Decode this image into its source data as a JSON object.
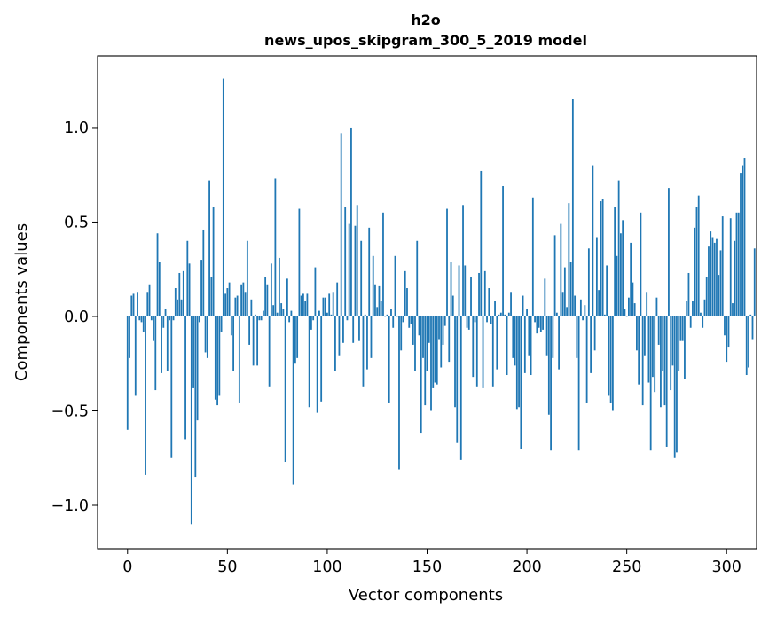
{
  "chart_data": {
    "type": "bar",
    "title": "h2o",
    "subtitle": "news_upos_skipgram_300_5_2019 model",
    "xlabel": "Vector components",
    "ylabel": "Components values",
    "xlim": [
      -15,
      315
    ],
    "ylim": [
      -1.23,
      1.38
    ],
    "xticks": [
      0,
      50,
      100,
      150,
      200,
      250,
      300
    ],
    "xtick_labels": [
      "0",
      "50",
      "100",
      "150",
      "200",
      "250",
      "300"
    ],
    "yticks": [
      -1.0,
      -0.5,
      0.0,
      0.5,
      1.0
    ],
    "ytick_labels": [
      "−1.0",
      "−0.5",
      "0.0",
      "0.5",
      "1.0"
    ],
    "bar_color": "#1f77b4",
    "grid": false,
    "legend": "none",
    "x_start": 0,
    "values": [
      -0.6,
      -0.22,
      0.11,
      0.12,
      -0.42,
      0.13,
      -0.02,
      -0.03,
      -0.08,
      -0.84,
      0.13,
      0.17,
      -0.02,
      -0.13,
      -0.39,
      0.44,
      0.29,
      -0.3,
      -0.06,
      0.04,
      -0.29,
      -0.02,
      -0.75,
      -0.02,
      0.15,
      0.09,
      0.23,
      0.09,
      0.24,
      -0.65,
      0.4,
      0.28,
      -1.1,
      -0.38,
      -0.85,
      -0.55,
      -0.03,
      0.3,
      0.46,
      -0.19,
      -0.22,
      0.72,
      0.21,
      0.58,
      -0.44,
      -0.47,
      -0.42,
      -0.08,
      1.26,
      0.12,
      0.15,
      0.18,
      -0.1,
      -0.29,
      0.1,
      0.11,
      -0.46,
      0.17,
      0.18,
      0.13,
      0.4,
      -0.15,
      0.09,
      -0.26,
      0.01,
      -0.26,
      -0.02,
      -0.02,
      0.03,
      0.21,
      0.17,
      -0.37,
      0.28,
      0.06,
      0.73,
      0.02,
      0.31,
      0.07,
      0.04,
      -0.77,
      0.2,
      -0.03,
      0.03,
      -0.89,
      -0.25,
      -0.22,
      0.57,
      0.11,
      0.12,
      0.08,
      0.12,
      -0.48,
      -0.07,
      -0.02,
      0.26,
      -0.51,
      0.03,
      -0.45,
      0.1,
      0.1,
      0.02,
      0.12,
      0.01,
      0.13,
      -0.29,
      0.18,
      -0.21,
      0.97,
      -0.14,
      0.58,
      -0.02,
      0.49,
      1.0,
      -0.14,
      0.48,
      0.59,
      -0.13,
      0.4,
      -0.37,
      0.01,
      -0.28,
      0.47,
      -0.22,
      0.32,
      0.17,
      0.05,
      0.16,
      0.08,
      0.55,
      0.0,
      0.01,
      -0.46,
      0.04,
      -0.06,
      0.32,
      0.0,
      -0.81,
      -0.18,
      -0.03,
      0.24,
      0.15,
      -0.06,
      -0.04,
      -0.15,
      -0.29,
      0.4,
      -0.1,
      -0.62,
      -0.22,
      -0.47,
      -0.29,
      -0.14,
      -0.5,
      -0.38,
      -0.35,
      -0.36,
      -0.12,
      -0.27,
      -0.15,
      -0.05,
      0.57,
      -0.24,
      0.29,
      0.11,
      -0.48,
      -0.67,
      0.27,
      -0.76,
      0.59,
      0.27,
      -0.06,
      -0.07,
      0.21,
      -0.32,
      -0.03,
      -0.37,
      0.23,
      0.77,
      -0.38,
      0.24,
      -0.03,
      0.15,
      -0.04,
      -0.37,
      0.08,
      -0.28,
      0.01,
      0.02,
      0.69,
      0.01,
      -0.31,
      0.02,
      0.13,
      -0.22,
      -0.26,
      -0.49,
      -0.48,
      -0.7,
      0.11,
      -0.3,
      0.04,
      -0.21,
      -0.31,
      0.63,
      -0.03,
      -0.09,
      -0.06,
      -0.08,
      -0.07,
      0.2,
      -0.21,
      -0.52,
      -0.71,
      -0.22,
      0.43,
      0.02,
      -0.28,
      0.49,
      0.13,
      0.26,
      0.05,
      0.6,
      0.29,
      1.15,
      0.11,
      -0.22,
      -0.71,
      0.09,
      -0.02,
      0.06,
      -0.46,
      0.36,
      -0.3,
      0.8,
      -0.18,
      0.42,
      0.14,
      0.61,
      0.62,
      0.01,
      0.27,
      -0.42,
      -0.46,
      -0.5,
      0.58,
      0.32,
      0.72,
      0.44,
      0.51,
      0.04,
      0.0,
      0.1,
      0.39,
      0.18,
      0.07,
      -0.18,
      -0.36,
      0.55,
      -0.47,
      -0.21,
      0.13,
      -0.35,
      -0.71,
      -0.32,
      -0.4,
      0.1,
      -0.15,
      -0.48,
      -0.29,
      -0.47,
      -0.69,
      0.68,
      -0.39,
      -0.26,
      -0.75,
      -0.72,
      -0.29,
      -0.13,
      -0.13,
      -0.33,
      0.08,
      0.23,
      -0.06,
      0.08,
      0.47,
      0.58,
      0.64,
      0.02,
      -0.06,
      0.09,
      0.21,
      0.37,
      0.45,
      0.42,
      0.39,
      0.41,
      0.22,
      0.35,
      0.53,
      -0.1,
      -0.24,
      -0.16,
      0.52,
      0.07,
      0.4,
      0.55,
      0.55,
      0.76,
      0.8,
      0.84,
      -0.31,
      -0.27,
      0.01,
      -0.12,
      0.36
    ]
  }
}
